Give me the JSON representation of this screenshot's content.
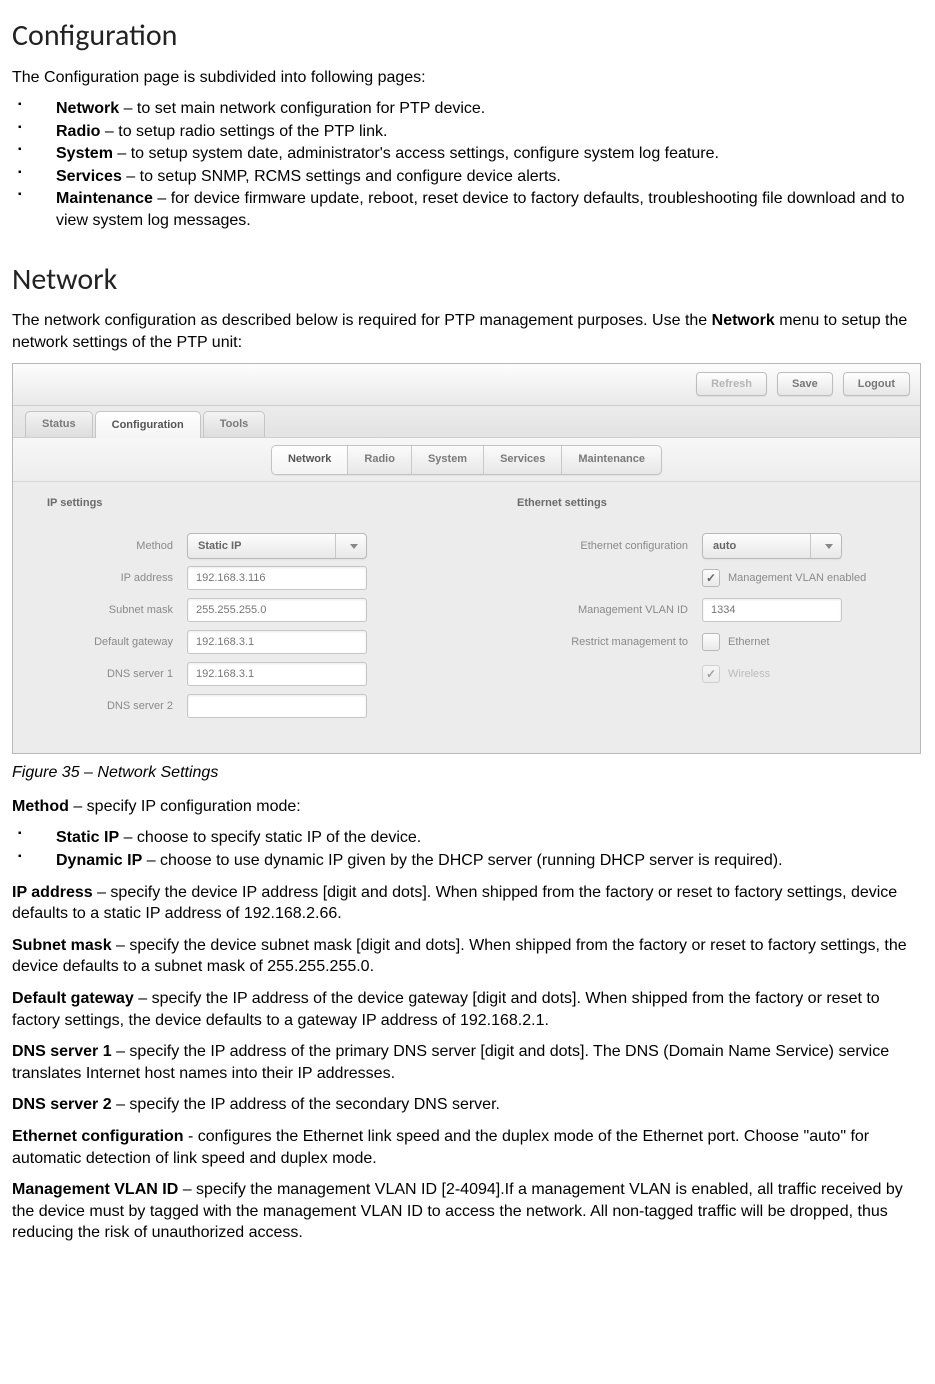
{
  "heading_config": "Configuration",
  "intro_config": "The Configuration page is subdivided into following pages:",
  "config_list": [
    {
      "term": "Network",
      "desc": " – to set main network configuration for PTP device."
    },
    {
      "term": "Radio",
      "desc": " – to setup radio settings of the PTP link."
    },
    {
      "term": "System",
      "desc": " – to setup system date, administrator's access settings, configure system log feature."
    },
    {
      "term": "Services",
      "desc": " – to setup SNMP, RCMS settings and configure device alerts."
    },
    {
      "term": "Maintenance",
      "desc": " – for device firmware update, reboot, reset device to factory defaults, troubleshooting file download and to view system log messages."
    }
  ],
  "heading_network": "Network",
  "intro_network_a": "The network configuration as described below is required for PTP management purposes. Use the ",
  "intro_network_b": "Network",
  "intro_network_c": " menu to setup the network settings of the PTP unit:",
  "shot": {
    "top_buttons": {
      "refresh": "Refresh",
      "save": "Save",
      "logout": "Logout"
    },
    "main_tabs": {
      "status": "Status",
      "configuration": "Configuration",
      "tools": "Tools",
      "active": "configuration"
    },
    "sub_tabs": {
      "network": "Network",
      "radio": "Radio",
      "system": "System",
      "services": "Services",
      "maintenance": "Maintenance",
      "active": "network"
    },
    "ip": {
      "title": "IP settings",
      "method_label": "Method",
      "method_value": "Static IP",
      "ip_label": "IP address",
      "ip_value": "192.168.3.116",
      "mask_label": "Subnet mask",
      "mask_value": "255.255.255.0",
      "gw_label": "Default gateway",
      "gw_value": "192.168.3.1",
      "dns1_label": "DNS server 1",
      "dns1_value": "192.168.3.1",
      "dns2_label": "DNS server 2",
      "dns2_value": ""
    },
    "eth": {
      "title": "Ethernet settings",
      "cfg_label": "Ethernet configuration",
      "cfg_value": "auto",
      "vlan_enabled_label": "Management VLAN enabled",
      "vlan_enabled": true,
      "vlan_id_label": "Management VLAN ID",
      "vlan_id_value": "1334",
      "restrict_label": "Restrict management to",
      "restrict_eth_label": "Ethernet",
      "restrict_eth_checked": false,
      "restrict_wl_label": "Wireless",
      "restrict_wl_checked": true,
      "restrict_wl_disabled": true
    }
  },
  "fig_caption": "Figure 35 – Network Settings",
  "defs": {
    "method_t": "Method",
    "method_d": " – specify IP configuration mode:",
    "static_t": "Static IP",
    "static_d": " – choose to specify static IP of the device.",
    "dyn_t": "Dynamic IP",
    "dyn_d": " – choose to use dynamic IP given by the DHCP server (running DHCP server is required).",
    "ip_t": "IP address",
    "ip_d": " – specify the device IP address [digit and dots]. When shipped from the factory or reset to factory settings, device defaults to a static IP address of 192.168.2.66.",
    "mask_t": "Subnet mask",
    "mask_d": " – specify the device subnet mask [digit and dots]. When shipped from the factory or reset to factory settings, the device defaults to a subnet mask of 255.255.255.0.",
    "gw_t": "Default gateway",
    "gw_d": " – specify the IP address of the device gateway [digit and dots]. When shipped from the factory or reset to factory settings, the device defaults to a gateway IP address of 192.168.2.1.",
    "dns1_t": "DNS server 1",
    "dns1_d": " – specify the IP address of the primary DNS server [digit and dots]. The DNS (Domain Name Service) service translates Internet host names into their IP addresses.",
    "dns2_t": "DNS server 2",
    "dns2_d": " – specify the IP address of the secondary DNS server.",
    "ethc_t": "Ethernet configuration",
    "ethc_d": " - configures the Ethernet link speed and the duplex mode of the Ethernet port. Choose \"auto\" for automatic detection of link speed and duplex mode.",
    "vlan_t": "Management VLAN ID",
    "vlan_d": " – specify the management VLAN ID [2-4094].If a management VLAN is enabled, all traffic received by the device must by tagged with the management VLAN ID to access the network. All non-tagged traffic will be dropped, thus reducing the risk of unauthorized access."
  }
}
